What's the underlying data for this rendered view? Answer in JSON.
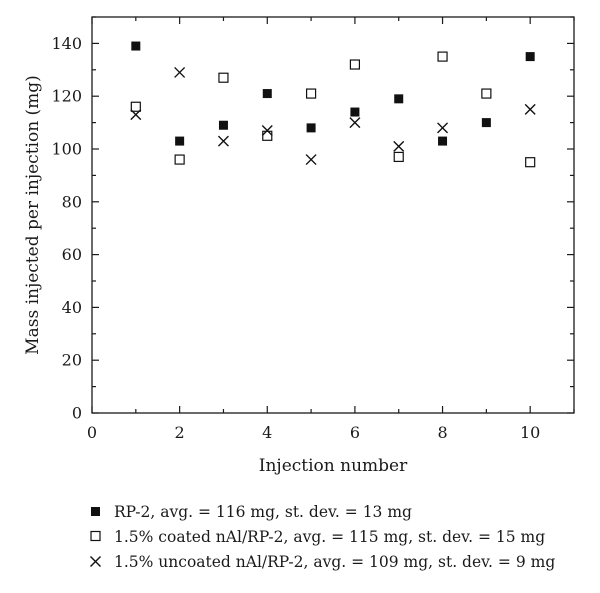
{
  "chart_data": {
    "type": "scatter",
    "xlabel": "Injection number",
    "ylabel": "Mass injected per injection (mg)",
    "xlim": [
      0,
      11
    ],
    "ylim": [
      0,
      150
    ],
    "x_ticks": [
      0,
      2,
      4,
      6,
      8,
      10
    ],
    "y_ticks": [
      0,
      20,
      40,
      60,
      80,
      100,
      120,
      140
    ],
    "grid": false,
    "legend_position": "bottom",
    "series": [
      {
        "name": "RP-2, avg. = 116 mg, st. dev. = 13 mg",
        "marker": "filled-square",
        "color": "#111111",
        "x": [
          1,
          2,
          3,
          4,
          5,
          6,
          7,
          8,
          9,
          10
        ],
        "y": [
          139,
          103,
          109,
          121,
          108,
          114,
          119,
          103,
          110,
          135
        ]
      },
      {
        "name": "1.5% coated nAl/RP-2, avg. = 115 mg, st. dev. = 15 mg",
        "marker": "open-square",
        "color": "#111111",
        "x": [
          1,
          2,
          3,
          4,
          5,
          6,
          7,
          8,
          9,
          10
        ],
        "y": [
          116,
          96,
          127,
          105,
          121,
          132,
          97,
          135,
          121,
          95
        ]
      },
      {
        "name": "1.5% uncoated nAl/RP-2, avg. = 109 mg, st. dev. = 9 mg",
        "marker": "cross",
        "color": "#111111",
        "x": [
          1,
          2,
          3,
          4,
          5,
          6,
          7,
          8,
          10
        ],
        "y": [
          113,
          129,
          103,
          107,
          96,
          110,
          101,
          108,
          115
        ]
      }
    ]
  }
}
